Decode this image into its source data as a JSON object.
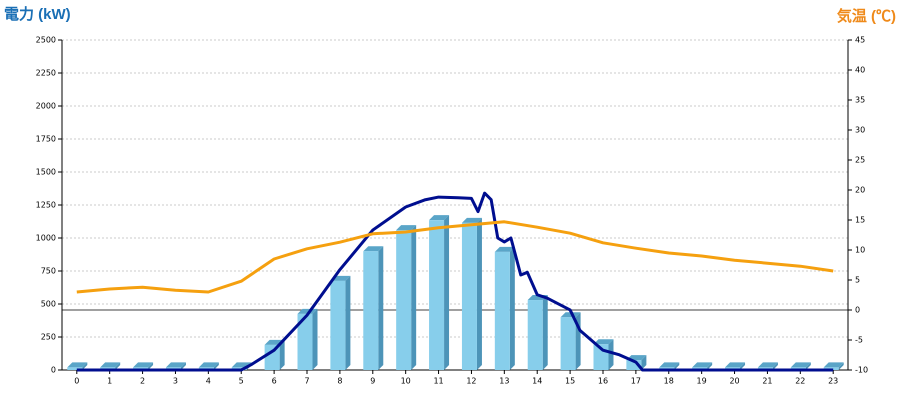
{
  "chart_data": {
    "type": "combo",
    "title": "電力 (kW)",
    "y2_title": "気温 (℃)",
    "x": [
      0,
      1,
      2,
      3,
      4,
      5,
      6,
      7,
      8,
      9,
      10,
      11,
      12,
      13,
      14,
      15,
      16,
      17,
      18,
      19,
      20,
      21,
      22,
      23
    ],
    "xlim": [
      -0.45,
      23.45
    ],
    "xticks": [
      0,
      1,
      2,
      3,
      4,
      5,
      6,
      7,
      8,
      9,
      10,
      11,
      12,
      13,
      14,
      15,
      16,
      17,
      18,
      19,
      20,
      21,
      22,
      23
    ],
    "ylim": [
      0,
      2500
    ],
    "yticks": [
      0,
      250,
      500,
      750,
      1000,
      1250,
      1500,
      1750,
      2000,
      2250,
      2500
    ],
    "y2lim": [
      -10,
      45
    ],
    "y2ticks": [
      -10,
      -5,
      0,
      5,
      10,
      15,
      20,
      25,
      30,
      35,
      40,
      45
    ],
    "grid": true,
    "series": [
      {
        "type": "bar",
        "color": "#87ceeb",
        "values": [
          20,
          20,
          20,
          20,
          20,
          20,
          190,
          425,
          675,
          900,
          1060,
          1135,
          1115,
          895,
          530,
          400,
          195,
          75,
          20,
          20,
          20,
          20,
          20,
          20
        ]
      },
      {
        "type": "line",
        "color": "#000e8f",
        "x": [
          0,
          5,
          5.3,
          6,
          7,
          8,
          9,
          10,
          10.6,
          11,
          11.6,
          12,
          12.2,
          12.4,
          12.6,
          12.8,
          13,
          13.2,
          13.5,
          13.7,
          14,
          14.3,
          15,
          15.3,
          16,
          16.5,
          17,
          17.2,
          23
        ],
        "values": [
          0,
          0,
          40,
          150,
          415,
          760,
          1060,
          1235,
          1290,
          1310,
          1305,
          1300,
          1200,
          1340,
          1290,
          1000,
          970,
          1000,
          720,
          740,
          570,
          545,
          455,
          300,
          150,
          115,
          60,
          0,
          0
        ]
      },
      {
        "type": "line",
        "color": "#f5a00f",
        "axis": "y2",
        "values": [
          3.0,
          3.5,
          3.8,
          3.3,
          3.0,
          4.8,
          8.5,
          10.2,
          11.3,
          12.7,
          13.0,
          13.7,
          14.2,
          14.7,
          13.8,
          12.8,
          11.2,
          10.3,
          9.5,
          9.0,
          8.3,
          7.8,
          7.3,
          6.5
        ]
      }
    ]
  }
}
